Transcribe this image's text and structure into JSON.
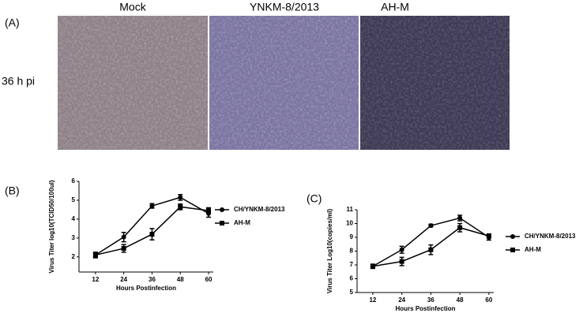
{
  "panel_a": {
    "label": "(A)",
    "columns": [
      "Mock",
      "YNKM-8/2013",
      "AH-M"
    ],
    "row_label": "36 h pi"
  },
  "chart_data": [
    {
      "type": "line",
      "label": "(B)",
      "x_label": "Hours Postinfection",
      "y_label": "Virus Titer log10(TCID50/100ul)",
      "x": [
        12,
        24,
        36,
        48,
        60
      ],
      "xlim": [
        5,
        62
      ],
      "xticks": [
        12,
        24,
        36,
        48,
        60
      ],
      "ylim": [
        1.2,
        6
      ],
      "yticks": [
        2,
        3,
        4,
        5,
        6
      ],
      "series": [
        {
          "name": "CH/YNKM-8/2013",
          "color": "#000000",
          "marker": "circle",
          "values": [
            2.1,
            3.05,
            4.7,
            5.15,
            4.3
          ],
          "errors": [
            0.15,
            0.25,
            0.12,
            0.15,
            0.2
          ]
        },
        {
          "name": "AH-M",
          "color": "#000000",
          "marker": "square",
          "values": [
            2.1,
            2.45,
            3.2,
            4.65,
            4.45
          ],
          "errors": [
            0.12,
            0.2,
            0.3,
            0.15,
            0.15
          ]
        }
      ]
    },
    {
      "type": "line",
      "label": "(C)",
      "x_label": "Hours Postinfection",
      "y_label": "Virus Titer Log10(copies/ml)",
      "x": [
        12,
        24,
        36,
        48,
        60
      ],
      "xlim": [
        5.5,
        62
      ],
      "xticks": [
        12,
        24,
        36,
        48,
        60
      ],
      "ylim": [
        5,
        11
      ],
      "yticks": [
        5,
        6,
        7,
        8,
        9,
        10,
        11
      ],
      "series": [
        {
          "name": "CH/YNKM-8/2013",
          "color": "#000000",
          "marker": "circle",
          "values": [
            6.9,
            8.1,
            9.85,
            10.4,
            9.0
          ],
          "errors": [
            0.15,
            0.25,
            0.1,
            0.2,
            0.2
          ]
        },
        {
          "name": "AH-M",
          "color": "#000000",
          "marker": "square",
          "values": [
            6.9,
            7.25,
            8.1,
            9.7,
            9.1
          ],
          "errors": [
            0.15,
            0.3,
            0.35,
            0.3,
            0.15
          ]
        }
      ]
    }
  ]
}
